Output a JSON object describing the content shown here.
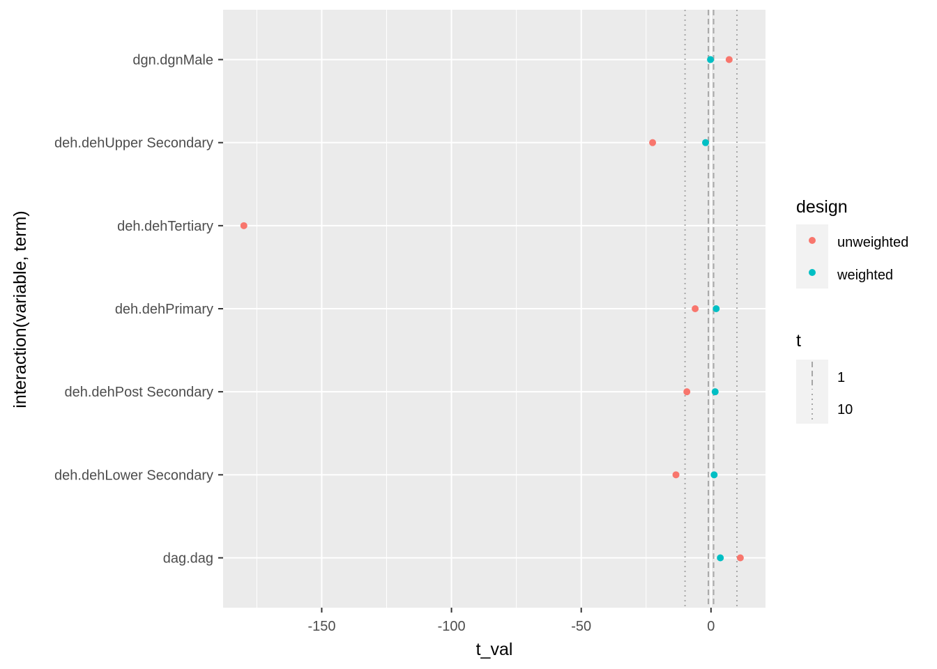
{
  "chart_data": {
    "type": "scatter",
    "title": "",
    "xlabel": "t_val",
    "ylabel": "interaction(variable, term)",
    "xlim": [
      -188,
      21
    ],
    "x_ticks": [
      -150,
      -100,
      -50,
      0
    ],
    "x_tick_labels": [
      "-150",
      "-100",
      "-50",
      "0"
    ],
    "x_minor_ticks": [
      -175,
      -125,
      -75,
      -25
    ],
    "categories": [
      "dag.dag",
      "deh.dehLower Secondary",
      "deh.dehPost Secondary",
      "deh.dehPrimary",
      "deh.dehTertiary",
      "deh.dehUpper Secondary",
      "dgn.dgnMale"
    ],
    "series": [
      {
        "name": "unweighted",
        "color": "#F8766D",
        "values": [
          11.3,
          -13.5,
          -9.3,
          -6.1,
          -180,
          -22.5,
          7
        ]
      },
      {
        "name": "weighted",
        "color": "#00BFC4",
        "values": [
          3.6,
          1.2,
          1.6,
          2.0,
          null,
          -2.1,
          -0.2
        ]
      }
    ],
    "reference_lines": [
      {
        "x": -1,
        "style": "dashed",
        "group": "1"
      },
      {
        "x": 1,
        "style": "dashed",
        "group": "1"
      },
      {
        "x": -10,
        "style": "dotted",
        "group": "10"
      },
      {
        "x": 10,
        "style": "dotted",
        "group": "10"
      }
    ],
    "legend": {
      "placement": "right",
      "color_title": "design",
      "color_items": [
        "unweighted",
        "weighted"
      ],
      "linetype_title": "t",
      "linetype_items": [
        {
          "label": "1",
          "style": "dashed"
        },
        {
          "label": "10",
          "style": "dotted"
        }
      ]
    },
    "grid": true,
    "panel_background": "#EBEBEB",
    "grid_color": "#FFFFFF",
    "refline_color": "#A6A6A6"
  }
}
